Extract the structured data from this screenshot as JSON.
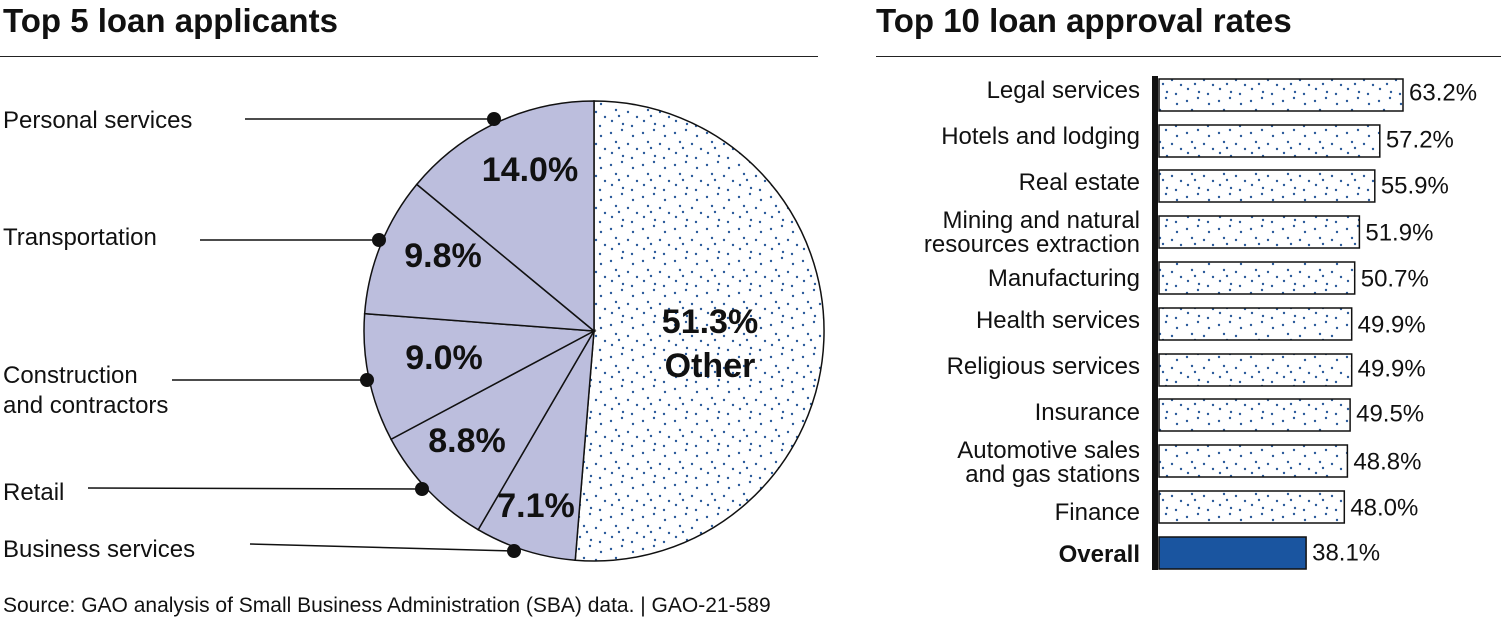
{
  "source": "Source: GAO analysis of Small Business Administration (SBA) data.  |  GAO-21-589",
  "colors": {
    "slice_fill": "#bcbedd",
    "dot": "#2a5a9a",
    "overall_bar": "#1a55a0",
    "line": "#111111"
  },
  "chart_data": [
    {
      "type": "pie",
      "title": "Top 5 loan applicants",
      "slices": [
        {
          "label": "Other",
          "value": 51.3,
          "value_label": "51.3%",
          "pattern": "dots"
        },
        {
          "label": "Business services",
          "value": 7.1,
          "value_label": "7.1%"
        },
        {
          "label": "Retail",
          "value": 8.8,
          "value_label": "8.8%"
        },
        {
          "label": "Construction\nand contractors",
          "value": 9.0,
          "value_label": "9.0%"
        },
        {
          "label": "Transportation",
          "value": 9.8,
          "value_label": "9.8%"
        },
        {
          "label": "Personal services",
          "value": 14.0,
          "value_label": "14.0%"
        }
      ]
    },
    {
      "type": "bar",
      "orientation": "horizontal",
      "title": "Top 10 loan approval rates",
      "categories": [
        "Legal services",
        "Hotels and lodging",
        "Real estate",
        "Mining and natural\nresources extraction",
        "Manufacturing",
        "Health services",
        "Religious services",
        "Insurance",
        "Automotive sales\nand gas stations",
        "Finance",
        "Overall"
      ],
      "values": [
        63.2,
        57.2,
        55.9,
        51.9,
        50.7,
        49.9,
        49.9,
        49.5,
        48.8,
        48.0,
        38.1
      ],
      "value_labels": [
        "63.2%",
        "57.2%",
        "55.9%",
        "51.9%",
        "50.7%",
        "49.9%",
        "49.9%",
        "49.5%",
        "48.8%",
        "48.0%",
        "38.1%"
      ],
      "highlight": "Overall",
      "xlim": [
        0,
        63.2
      ]
    }
  ]
}
